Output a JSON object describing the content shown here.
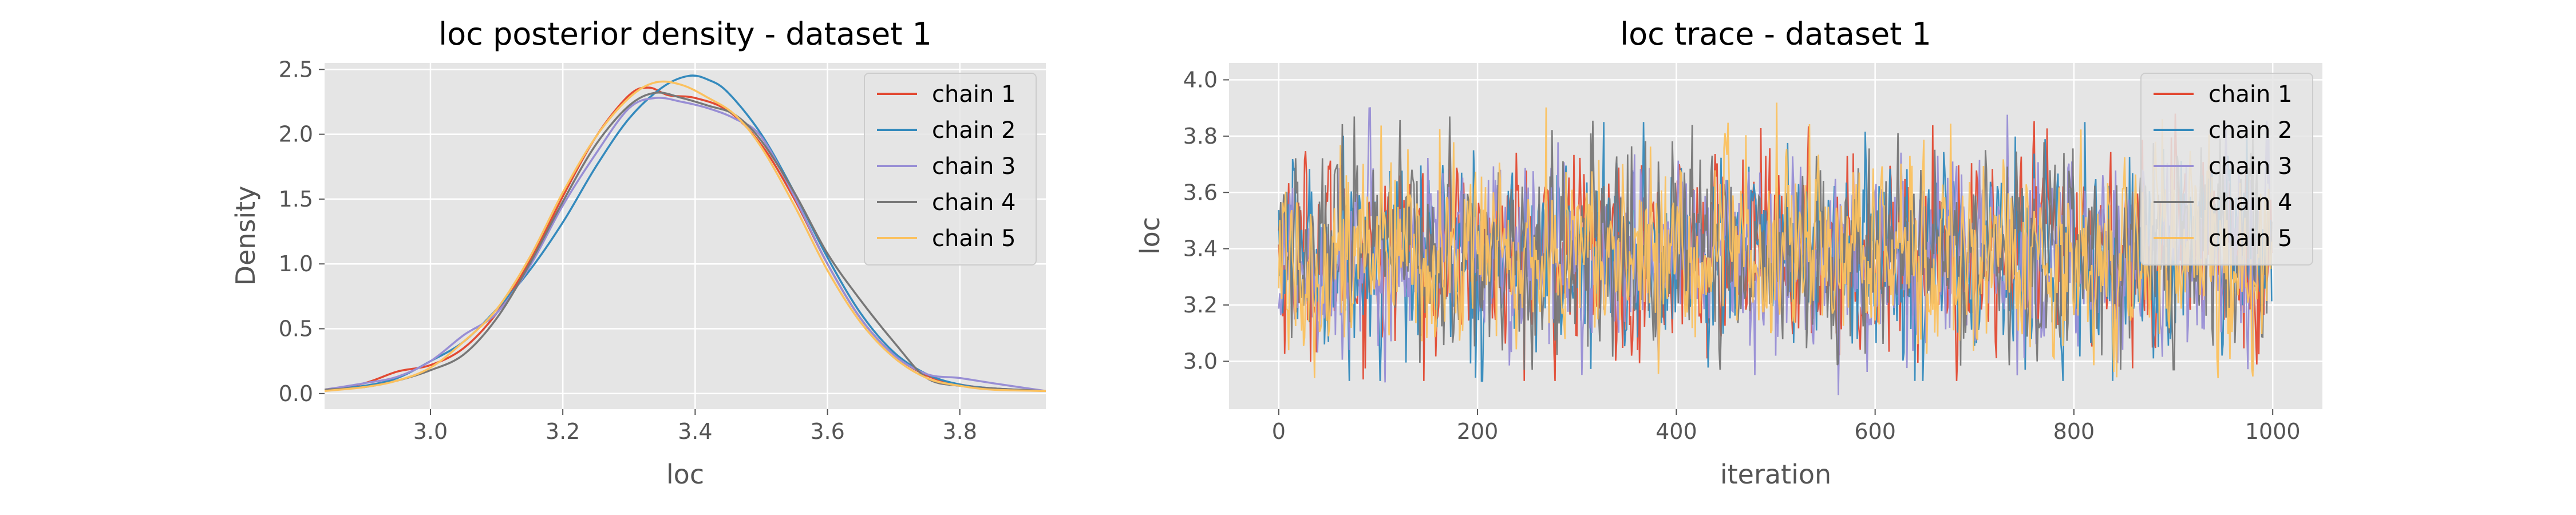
{
  "chart_data": [
    {
      "type": "line",
      "title": "loc posterior density - dataset 1",
      "xlabel": "loc",
      "ylabel": "Density",
      "xlim": [
        2.84,
        3.93
      ],
      "ylim": [
        -0.12,
        2.55
      ],
      "xticks": [
        3.0,
        3.2,
        3.4,
        3.6,
        3.8
      ],
      "xtick_labels": [
        "3.0",
        "3.2",
        "3.4",
        "3.6",
        "3.8"
      ],
      "yticks": [
        0.0,
        0.5,
        1.0,
        1.5,
        2.0,
        2.5
      ],
      "ytick_labels": [
        "0.0",
        "0.5",
        "1.0",
        "1.5",
        "2.0",
        "2.5"
      ],
      "grid": true,
      "legend": "top-right",
      "series": [
        {
          "name": "chain 1",
          "color": "#E24A33",
          "x": [
            2.84,
            2.9,
            2.95,
            3.0,
            3.05,
            3.1,
            3.15,
            3.2,
            3.25,
            3.3,
            3.33,
            3.36,
            3.4,
            3.45,
            3.5,
            3.55,
            3.6,
            3.65,
            3.7,
            3.75,
            3.8,
            3.85,
            3.93
          ],
          "y": [
            0.03,
            0.08,
            0.17,
            0.22,
            0.35,
            0.62,
            1.02,
            1.52,
            1.98,
            2.3,
            2.36,
            2.3,
            2.28,
            2.18,
            1.92,
            1.5,
            1.0,
            0.58,
            0.3,
            0.14,
            0.07,
            0.04,
            0.02
          ]
        },
        {
          "name": "chain 2",
          "color": "#348ABD",
          "x": [
            2.84,
            2.9,
            2.95,
            3.0,
            3.05,
            3.1,
            3.15,
            3.2,
            3.25,
            3.3,
            3.35,
            3.39,
            3.42,
            3.45,
            3.5,
            3.55,
            3.6,
            3.65,
            3.7,
            3.75,
            3.8,
            3.85,
            3.93
          ],
          "y": [
            0.03,
            0.06,
            0.12,
            0.25,
            0.4,
            0.65,
            0.95,
            1.32,
            1.75,
            2.12,
            2.36,
            2.45,
            2.42,
            2.32,
            2.0,
            1.55,
            1.05,
            0.62,
            0.32,
            0.15,
            0.07,
            0.04,
            0.02
          ]
        },
        {
          "name": "chain 3",
          "color": "#988ED5",
          "x": [
            2.84,
            2.9,
            2.95,
            3.0,
            3.05,
            3.1,
            3.15,
            3.2,
            3.25,
            3.3,
            3.34,
            3.38,
            3.42,
            3.46,
            3.5,
            3.55,
            3.6,
            3.65,
            3.7,
            3.75,
            3.8,
            3.85,
            3.93
          ],
          "y": [
            0.03,
            0.08,
            0.13,
            0.25,
            0.45,
            0.62,
            0.98,
            1.45,
            1.85,
            2.2,
            2.28,
            2.25,
            2.2,
            2.12,
            1.98,
            1.52,
            1.0,
            0.58,
            0.3,
            0.15,
            0.12,
            0.08,
            0.02
          ]
        },
        {
          "name": "chain 4",
          "color": "#777777",
          "x": [
            2.84,
            2.9,
            2.95,
            3.0,
            3.05,
            3.1,
            3.15,
            3.2,
            3.25,
            3.3,
            3.34,
            3.38,
            3.42,
            3.46,
            3.5,
            3.55,
            3.6,
            3.65,
            3.7,
            3.75,
            3.8,
            3.85,
            3.93
          ],
          "y": [
            0.03,
            0.05,
            0.1,
            0.18,
            0.3,
            0.58,
            1.0,
            1.48,
            1.92,
            2.22,
            2.32,
            2.28,
            2.22,
            2.15,
            1.95,
            1.55,
            1.08,
            0.72,
            0.4,
            0.12,
            0.06,
            0.04,
            0.02
          ]
        },
        {
          "name": "chain 5",
          "color": "#FBC15E",
          "x": [
            2.84,
            2.9,
            2.95,
            3.0,
            3.05,
            3.1,
            3.15,
            3.2,
            3.25,
            3.3,
            3.34,
            3.38,
            3.42,
            3.46,
            3.5,
            3.55,
            3.6,
            3.65,
            3.7,
            3.75,
            3.8,
            3.85,
            3.93
          ],
          "y": [
            0.02,
            0.05,
            0.1,
            0.2,
            0.4,
            0.65,
            1.05,
            1.55,
            1.98,
            2.28,
            2.4,
            2.38,
            2.28,
            2.15,
            1.9,
            1.45,
            0.95,
            0.55,
            0.28,
            0.12,
            0.06,
            0.03,
            0.02
          ]
        }
      ]
    },
    {
      "type": "line",
      "title": "loc trace - dataset 1",
      "xlabel": "iteration",
      "ylabel": "loc",
      "xlim": [
        -50,
        1050
      ],
      "ylim": [
        2.83,
        4.06
      ],
      "xticks": [
        0,
        200,
        400,
        600,
        800,
        1000
      ],
      "xtick_labels": [
        "0",
        "200",
        "400",
        "600",
        "800",
        "1000"
      ],
      "yticks": [
        3.0,
        3.2,
        3.4,
        3.6,
        3.8,
        4.0
      ],
      "ytick_labels": [
        "3.0",
        "3.2",
        "3.4",
        "3.6",
        "3.8",
        "4.0"
      ],
      "grid": true,
      "legend": "top-right",
      "n_iterations": 1000,
      "series": [
        {
          "name": "chain 1",
          "color": "#E24A33",
          "mean": 3.38,
          "sd": 0.17,
          "min": 2.93,
          "max": 3.88
        },
        {
          "name": "chain 2",
          "color": "#348ABD",
          "mean": 3.38,
          "sd": 0.17,
          "min": 2.93,
          "max": 3.85
        },
        {
          "name": "chain 3",
          "color": "#988ED5",
          "mean": 3.37,
          "sd": 0.17,
          "min": 2.88,
          "max": 3.9
        },
        {
          "name": "chain 4",
          "color": "#777777",
          "mean": 3.38,
          "sd": 0.17,
          "min": 2.97,
          "max": 3.87
        },
        {
          "name": "chain 5",
          "color": "#FBC15E",
          "mean": 3.38,
          "sd": 0.17,
          "min": 2.94,
          "max": 4.0
        }
      ]
    }
  ]
}
